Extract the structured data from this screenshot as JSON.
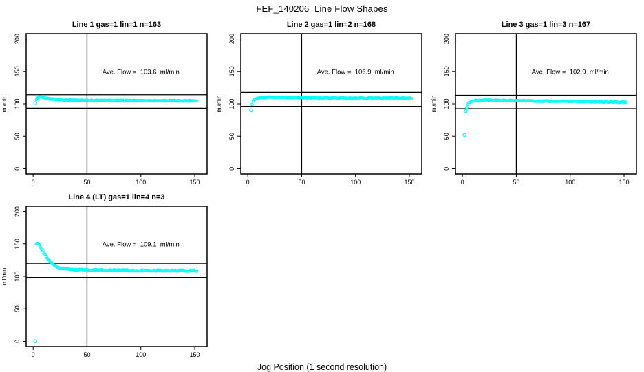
{
  "figure": {
    "title": "FEF_140206  Line Flow Shapes",
    "x_axis_label": "Jog Position (1 second resolution)",
    "y_axis_label": "ml/min",
    "point_color": "#00ffff",
    "line_color": "#000000",
    "background": "#ffffff"
  },
  "chart_data": [
    {
      "type": "scatter",
      "title": "Line 1 gas=1 lin=1 n=163",
      "n": 163,
      "ave_flow": 103.6,
      "ave_flow_label": "Ave. Flow =  103.6  ml/min",
      "ylabel": "ml/min",
      "xlim": [
        0,
        150
      ],
      "ylim": [
        0,
        200
      ],
      "x_ticks": [
        0,
        50,
        100,
        150
      ],
      "y_ticks": [
        0,
        50,
        100,
        150,
        200
      ],
      "grid": false,
      "vline_x": 50,
      "hlines": [
        114.0,
        93.2
      ],
      "outliers": [
        [
          2,
          101
        ]
      ],
      "anchors": [
        [
          3,
          106
        ],
        [
          4,
          108.5
        ],
        [
          5,
          109.5
        ],
        [
          7,
          110
        ],
        [
          10,
          109
        ],
        [
          14,
          108
        ],
        [
          20,
          106.8
        ],
        [
          28,
          106
        ],
        [
          40,
          105.5
        ],
        [
          60,
          105
        ],
        [
          90,
          104.8
        ],
        [
          120,
          104.7
        ],
        [
          152,
          104.6
        ]
      ],
      "x_start": 3,
      "x_end": 152,
      "noise": 1.5,
      "seed": 1
    },
    {
      "type": "scatter",
      "title": "Line 2 gas=1 lin=2 n=168",
      "n": 168,
      "ave_flow": 106.9,
      "ave_flow_label": "Ave. Flow =  106.9  ml/min",
      "ylabel": "ml/min",
      "xlim": [
        0,
        150
      ],
      "ylim": [
        0,
        200
      ],
      "x_ticks": [
        0,
        50,
        100,
        150
      ],
      "y_ticks": [
        0,
        50,
        100,
        150,
        200
      ],
      "grid": false,
      "vline_x": 50,
      "hlines": [
        117.6,
        96.2
      ],
      "outliers": [
        [
          3,
          90
        ]
      ],
      "anchors": [
        [
          4,
          99
        ],
        [
          5,
          103.5
        ],
        [
          6,
          106
        ],
        [
          8,
          108
        ],
        [
          12,
          109.5
        ],
        [
          20,
          110.2
        ],
        [
          35,
          109.8
        ],
        [
          60,
          109.3
        ],
        [
          100,
          109
        ],
        [
          130,
          108.8
        ],
        [
          152,
          108.6
        ]
      ],
      "x_start": 4,
      "x_end": 152,
      "noise": 1.5,
      "seed": 2
    },
    {
      "type": "scatter",
      "title": "Line 3 gas=1 lin=3 n=167",
      "n": 167,
      "ave_flow": 102.9,
      "ave_flow_label": "Ave. Flow =  102.9  ml/min",
      "ylabel": "ml/min",
      "xlim": [
        0,
        150
      ],
      "ylim": [
        0,
        200
      ],
      "x_ticks": [
        0,
        50,
        100,
        150
      ],
      "y_ticks": [
        0,
        50,
        100,
        150,
        200
      ],
      "grid": false,
      "vline_x": 50,
      "hlines": [
        113.2,
        92.6
      ],
      "outliers": [
        [
          2,
          52
        ],
        [
          3,
          89
        ]
      ],
      "anchors": [
        [
          4,
          95
        ],
        [
          5,
          99.5
        ],
        [
          6,
          101.5
        ],
        [
          8,
          103.5
        ],
        [
          12,
          104.8
        ],
        [
          20,
          105.3
        ],
        [
          40,
          105
        ],
        [
          70,
          104.2
        ],
        [
          100,
          103.6
        ],
        [
          130,
          103
        ],
        [
          152,
          102.4
        ]
      ],
      "x_start": 4,
      "x_end": 152,
      "noise": 1.5,
      "seed": 3
    },
    {
      "type": "scatter",
      "title": "Line 4 (LT) gas=1 lin=4 n=3",
      "n": 3,
      "ave_flow": 109.1,
      "ave_flow_label": "Ave. Flow =  109.1  ml/min",
      "ylabel": "ml/min",
      "xlim": [
        0,
        150
      ],
      "ylim": [
        0,
        200
      ],
      "x_ticks": [
        0,
        50,
        100,
        150
      ],
      "y_ticks": [
        0,
        50,
        100,
        150,
        200
      ],
      "grid": false,
      "vline_x": 50,
      "hlines": [
        120.0,
        98.2
      ],
      "outliers": [
        [
          2,
          0
        ]
      ],
      "anchors": [
        [
          3,
          150
        ],
        [
          4,
          151
        ],
        [
          5,
          149.5
        ],
        [
          6,
          147.5
        ],
        [
          8,
          142
        ],
        [
          10,
          136
        ],
        [
          12,
          130.5
        ],
        [
          15,
          123.5
        ],
        [
          18,
          119
        ],
        [
          22,
          115
        ],
        [
          26,
          112.5
        ],
        [
          30,
          111.3
        ],
        [
          38,
          110.3
        ],
        [
          50,
          109.8
        ],
        [
          70,
          109.4
        ],
        [
          100,
          109.1
        ],
        [
          130,
          108.9
        ],
        [
          152,
          108.8
        ]
      ],
      "x_start": 3,
      "x_end": 152,
      "noise": 1.8,
      "seed": 4
    }
  ]
}
